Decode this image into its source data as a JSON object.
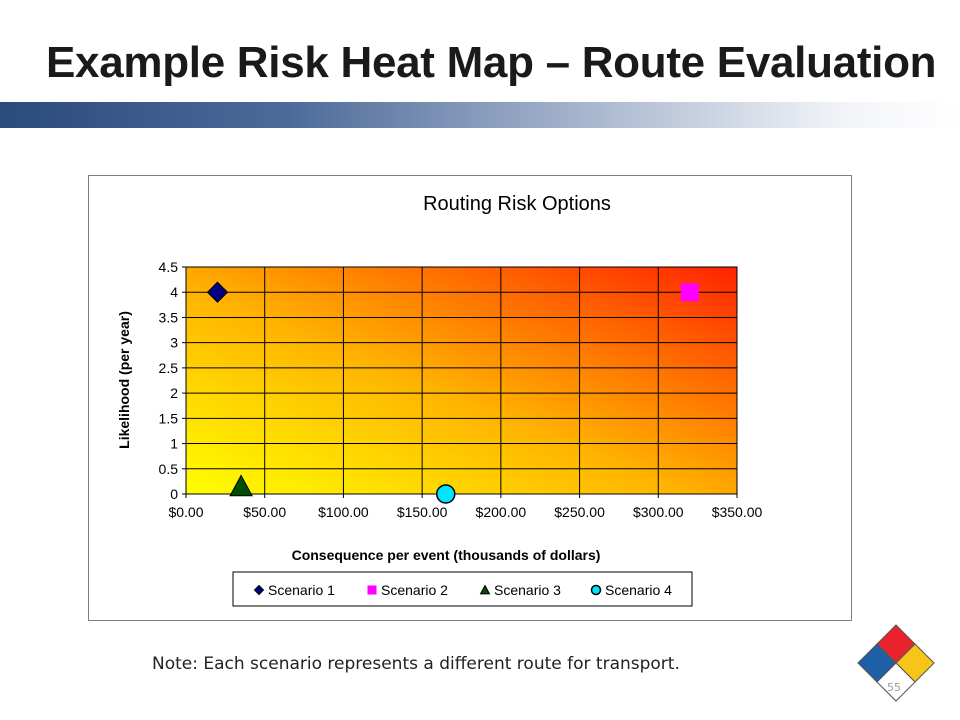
{
  "slide": {
    "title": "Example Risk Heat Map – Route Evaluation",
    "note": "Note:  Each scenario represents a different route for transport.",
    "page_number": "55",
    "accent_colors": {
      "title_bar_dark": "#2b4a7d",
      "title_bar_light": "#ffffff"
    },
    "badge_colors": {
      "top": "#e8232b",
      "left": "#1f5fa8",
      "right": "#f5c518",
      "bottom": "#ffffff"
    }
  },
  "chart_data": {
    "type": "scatter",
    "title": "Routing Risk Options",
    "xlabel": "Consequence per event (thousands of dollars)",
    "ylabel": "Likelihood (per year)",
    "xlim": [
      0,
      350
    ],
    "ylim": [
      0,
      4.5
    ],
    "x_ticks": [
      "$0.00",
      "$50.00",
      "$100.00",
      "$150.00",
      "$200.00",
      "$250.00",
      "$300.00",
      "$350.00"
    ],
    "y_ticks": [
      "0",
      "0.5",
      "1",
      "1.5",
      "2",
      "2.5",
      "3",
      "3.5",
      "4",
      "4.5"
    ],
    "grid": true,
    "background": "heat gradient yellow (low risk) to red (high risk)",
    "legend_position": "bottom",
    "series": [
      {
        "name": "Scenario 1",
        "x": 20,
        "y": 4,
        "marker": "diamond",
        "color": "#000080"
      },
      {
        "name": "Scenario 2",
        "x": 320,
        "y": 4,
        "marker": "square",
        "color": "#ff00ff"
      },
      {
        "name": "Scenario 3",
        "x": 35,
        "y": 0.15,
        "marker": "triangle",
        "color": "#004d00"
      },
      {
        "name": "Scenario 4",
        "x": 165,
        "y": 0,
        "marker": "circle",
        "color": "#00e5ff"
      }
    ]
  }
}
